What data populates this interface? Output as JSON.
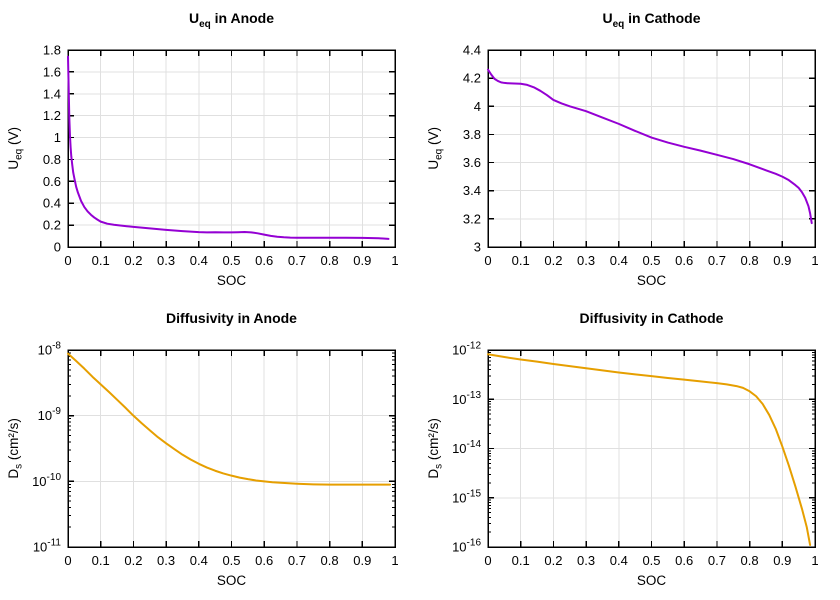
{
  "style": {
    "background": "#ffffff",
    "axis_color": "#000000",
    "grid_color": "#e0e0e0",
    "anode_ueq_color": "#9400d3",
    "cathode_ueq_color": "#9400d3",
    "anode_diff_color": "#e69f00",
    "cathode_diff_color": "#e69f00"
  },
  "chart_data": [
    {
      "type": "line",
      "id": "ueq-anode",
      "title": {
        "pre": "U",
        "sub": "eq",
        "post": " in Anode"
      },
      "ylabel": {
        "pre": "U",
        "sub": "eq",
        "post": " (V)"
      },
      "xlabel": "SOC",
      "color": "#9400d3",
      "grid": true,
      "xscale": "linear",
      "yscale": "linear",
      "xlim": [
        0,
        1
      ],
      "ylim": [
        0,
        1.8
      ],
      "xticks": [
        {
          "v": 0,
          "l": "0"
        },
        {
          "v": 0.1,
          "l": "0.1"
        },
        {
          "v": 0.2,
          "l": "0.2"
        },
        {
          "v": 0.3,
          "l": "0.3"
        },
        {
          "v": 0.4,
          "l": "0.4"
        },
        {
          "v": 0.5,
          "l": "0.5"
        },
        {
          "v": 0.6,
          "l": "0.6"
        },
        {
          "v": 0.7,
          "l": "0.7"
        },
        {
          "v": 0.8,
          "l": "0.8"
        },
        {
          "v": 0.9,
          "l": "0.9"
        },
        {
          "v": 1,
          "l": "1"
        }
      ],
      "yticks": [
        {
          "v": 0,
          "l": "0"
        },
        {
          "v": 0.2,
          "l": "0.2"
        },
        {
          "v": 0.4,
          "l": "0.4"
        },
        {
          "v": 0.6,
          "l": "0.6"
        },
        {
          "v": 0.8,
          "l": "0.8"
        },
        {
          "v": 1,
          "l": "1"
        },
        {
          "v": 1.2,
          "l": "1.2"
        },
        {
          "v": 1.4,
          "l": "1.4"
        },
        {
          "v": 1.6,
          "l": "1.6"
        },
        {
          "v": 1.8,
          "l": "1.8"
        }
      ],
      "x": [
        0,
        0.002,
        0.004,
        0.006,
        0.008,
        0.01,
        0.013,
        0.016,
        0.02,
        0.025,
        0.03,
        0.035,
        0.04,
        0.05,
        0.06,
        0.07,
        0.08,
        0.09,
        0.1,
        0.12,
        0.14,
        0.16,
        0.18,
        0.2,
        0.225,
        0.25,
        0.275,
        0.3,
        0.325,
        0.35,
        0.375,
        0.4,
        0.425,
        0.45,
        0.475,
        0.5,
        0.52,
        0.54,
        0.56,
        0.58,
        0.6,
        0.62,
        0.64,
        0.66,
        0.68,
        0.7,
        0.75,
        0.8,
        0.85,
        0.9,
        0.95,
        0.98
      ],
      "y": [
        1.74,
        1.46,
        1.18,
        1.02,
        0.91,
        0.83,
        0.75,
        0.68,
        0.62,
        0.55,
        0.5,
        0.46,
        0.42,
        0.365,
        0.325,
        0.295,
        0.27,
        0.25,
        0.232,
        0.213,
        0.203,
        0.196,
        0.19,
        0.184,
        0.177,
        0.17,
        0.163,
        0.157,
        0.151,
        0.145,
        0.14,
        0.136,
        0.134,
        0.135,
        0.134,
        0.134,
        0.135,
        0.137,
        0.134,
        0.125,
        0.113,
        0.102,
        0.094,
        0.089,
        0.086,
        0.085,
        0.084,
        0.084,
        0.084,
        0.083,
        0.08,
        0.074
      ]
    },
    {
      "type": "line",
      "id": "ueq-cathode",
      "title": {
        "pre": "U",
        "sub": "eq",
        "post": " in Cathode"
      },
      "ylabel": {
        "pre": "U",
        "sub": "eq",
        "post": " (V)"
      },
      "xlabel": "SOC",
      "color": "#9400d3",
      "grid": true,
      "xscale": "linear",
      "yscale": "linear",
      "xlim": [
        0,
        1
      ],
      "ylim": [
        3,
        4.4
      ],
      "xticks": [
        {
          "v": 0,
          "l": "0"
        },
        {
          "v": 0.1,
          "l": "0.1"
        },
        {
          "v": 0.2,
          "l": "0.2"
        },
        {
          "v": 0.3,
          "l": "0.3"
        },
        {
          "v": 0.4,
          "l": "0.4"
        },
        {
          "v": 0.5,
          "l": "0.5"
        },
        {
          "v": 0.6,
          "l": "0.6"
        },
        {
          "v": 0.7,
          "l": "0.7"
        },
        {
          "v": 0.8,
          "l": "0.8"
        },
        {
          "v": 0.9,
          "l": "0.9"
        },
        {
          "v": 1,
          "l": "1"
        }
      ],
      "yticks": [
        {
          "v": 3,
          "l": "3"
        },
        {
          "v": 3.2,
          "l": "3.2"
        },
        {
          "v": 3.4,
          "l": "3.4"
        },
        {
          "v": 3.6,
          "l": "3.6"
        },
        {
          "v": 3.8,
          "l": "3.8"
        },
        {
          "v": 4,
          "l": "4"
        },
        {
          "v": 4.2,
          "l": "4.2"
        },
        {
          "v": 4.4,
          "l": "4.4"
        }
      ],
      "x": [
        0,
        0.01,
        0.02,
        0.03,
        0.04,
        0.05,
        0.06,
        0.08,
        0.1,
        0.12,
        0.14,
        0.16,
        0.18,
        0.2,
        0.225,
        0.25,
        0.3,
        0.35,
        0.4,
        0.45,
        0.5,
        0.55,
        0.6,
        0.65,
        0.7,
        0.75,
        0.8,
        0.85,
        0.88,
        0.9,
        0.92,
        0.94,
        0.95,
        0.96,
        0.97,
        0.98,
        0.985,
        0.99
      ],
      "y": [
        4.26,
        4.225,
        4.195,
        4.18,
        4.17,
        4.166,
        4.164,
        4.162,
        4.16,
        4.152,
        4.135,
        4.11,
        4.08,
        4.045,
        4.02,
        4.0,
        3.965,
        3.92,
        3.875,
        3.825,
        3.778,
        3.742,
        3.712,
        3.685,
        3.655,
        3.625,
        3.588,
        3.545,
        3.52,
        3.5,
        3.475,
        3.44,
        3.42,
        3.39,
        3.35,
        3.29,
        3.24,
        3.17
      ]
    },
    {
      "type": "line",
      "id": "diffusivity-anode",
      "title": {
        "pre": "Diffusivity in Anode",
        "sub": "",
        "post": ""
      },
      "ylabel": {
        "pre": "D",
        "sub": "s",
        "post": " (cm²/s)"
      },
      "xlabel": "SOC",
      "color": "#e69f00",
      "grid": true,
      "xscale": "linear",
      "yscale": "log",
      "xlim": [
        0,
        1
      ],
      "ylim": [
        1e-11,
        1e-08
      ],
      "xticks": [
        {
          "v": 0,
          "l": "0"
        },
        {
          "v": 0.1,
          "l": "0.1"
        },
        {
          "v": 0.2,
          "l": "0.2"
        },
        {
          "v": 0.3,
          "l": "0.3"
        },
        {
          "v": 0.4,
          "l": "0.4"
        },
        {
          "v": 0.5,
          "l": "0.5"
        },
        {
          "v": 0.6,
          "l": "0.6"
        },
        {
          "v": 0.7,
          "l": "0.7"
        },
        {
          "v": 0.8,
          "l": "0.8"
        },
        {
          "v": 0.9,
          "l": "0.9"
        },
        {
          "v": 1,
          "l": "1"
        }
      ],
      "yticks": [
        {
          "v": 1e-11,
          "base": "10",
          "exp": "-11"
        },
        {
          "v": 1e-10,
          "base": "10",
          "exp": "-10"
        },
        {
          "v": 1e-09,
          "base": "10",
          "exp": "-9"
        },
        {
          "v": 1e-08,
          "base": "10",
          "exp": "-8"
        }
      ],
      "x": [
        0,
        0.025,
        0.05,
        0.075,
        0.1,
        0.125,
        0.15,
        0.175,
        0.2,
        0.225,
        0.25,
        0.275,
        0.3,
        0.325,
        0.35,
        0.375,
        0.4,
        0.425,
        0.45,
        0.475,
        0.5,
        0.525,
        0.55,
        0.575,
        0.6,
        0.625,
        0.65,
        0.7,
        0.75,
        0.8,
        0.85,
        0.9,
        0.95,
        0.985
      ],
      "y": [
        8.8e-09,
        6.8e-09,
        5.2e-09,
        3.9e-09,
        3e-09,
        2.3e-09,
        1.75e-09,
        1.33e-09,
        1e-09,
        7.7e-10,
        6e-10,
        4.7e-10,
        3.8e-10,
        3.1e-10,
        2.55e-10,
        2.15e-10,
        1.85e-10,
        1.62e-10,
        1.45e-10,
        1.32e-10,
        1.22e-10,
        1.14e-10,
        1.08e-10,
        1.03e-10,
        1e-10,
        9.7e-11,
        9.5e-11,
        9.2e-11,
        9e-11,
        8.9e-11,
        8.9e-11,
        8.9e-11,
        8.9e-11,
        8.9e-11
      ]
    },
    {
      "type": "line",
      "id": "diffusivity-cathode",
      "title": {
        "pre": "Diffusivity in Cathode",
        "sub": "",
        "post": ""
      },
      "ylabel": {
        "pre": "D",
        "sub": "s",
        "post": " (cm²/s)"
      },
      "xlabel": "SOC",
      "color": "#e69f00",
      "grid": true,
      "xscale": "linear",
      "yscale": "log",
      "xlim": [
        0,
        1
      ],
      "ylim": [
        1e-16,
        1e-12
      ],
      "xticks": [
        {
          "v": 0,
          "l": "0"
        },
        {
          "v": 0.1,
          "l": "0.1"
        },
        {
          "v": 0.2,
          "l": "0.2"
        },
        {
          "v": 0.3,
          "l": "0.3"
        },
        {
          "v": 0.4,
          "l": "0.4"
        },
        {
          "v": 0.5,
          "l": "0.5"
        },
        {
          "v": 0.6,
          "l": "0.6"
        },
        {
          "v": 0.7,
          "l": "0.7"
        },
        {
          "v": 0.8,
          "l": "0.8"
        },
        {
          "v": 0.9,
          "l": "0.9"
        },
        {
          "v": 1,
          "l": "1"
        }
      ],
      "yticks": [
        {
          "v": 1e-16,
          "base": "10",
          "exp": "-16"
        },
        {
          "v": 1e-15,
          "base": "10",
          "exp": "-15"
        },
        {
          "v": 1e-14,
          "base": "10",
          "exp": "-14"
        },
        {
          "v": 1e-13,
          "base": "10",
          "exp": "-13"
        },
        {
          "v": 1e-12,
          "base": "10",
          "exp": "-12"
        }
      ],
      "x": [
        0,
        0.05,
        0.1,
        0.15,
        0.2,
        0.25,
        0.3,
        0.35,
        0.4,
        0.45,
        0.5,
        0.55,
        0.6,
        0.65,
        0.7,
        0.73,
        0.76,
        0.78,
        0.8,
        0.82,
        0.84,
        0.86,
        0.88,
        0.9,
        0.92,
        0.94,
        0.96,
        0.975,
        0.985
      ],
      "y": [
        8.2e-13,
        7.2e-13,
        6.4e-13,
        5.8e-13,
        5.2e-13,
        4.7e-13,
        4.25e-13,
        3.85e-13,
        3.5e-13,
        3.2e-13,
        2.95e-13,
        2.7e-13,
        2.5e-13,
        2.3e-13,
        2.12e-13,
        2e-13,
        1.85e-13,
        1.7e-13,
        1.45e-13,
        1.15e-13,
        8e-14,
        4.8e-14,
        2.5e-14,
        1.1e-14,
        4.5e-15,
        1.7e-15,
        6e-16,
        2.5e-16,
        1.1e-16
      ]
    }
  ]
}
